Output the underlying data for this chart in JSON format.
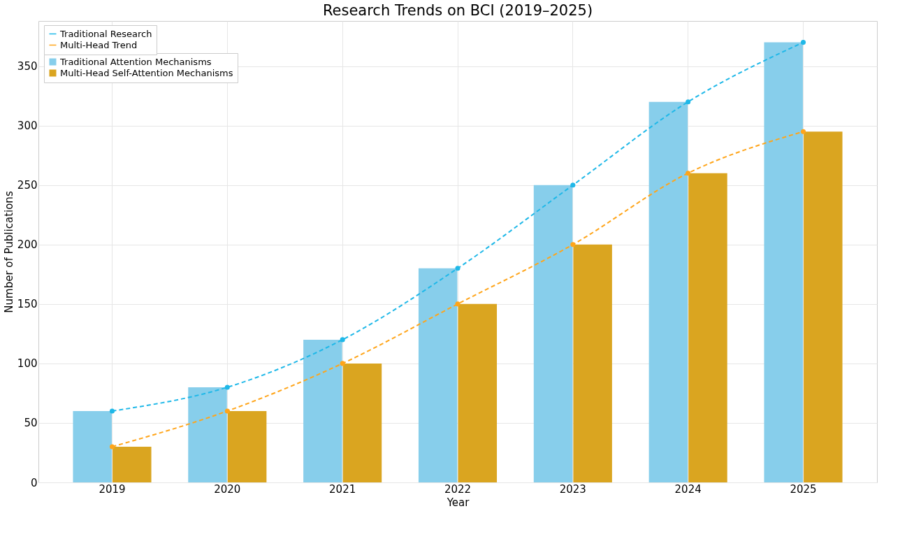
{
  "chart_data": {
    "type": "bar",
    "title": "Research Trends on BCI (2019–2025)",
    "xlabel": "Year",
    "ylabel": "Number of Publications",
    "categories": [
      "2019",
      "2020",
      "2021",
      "2022",
      "2023",
      "2024",
      "2025"
    ],
    "series": [
      {
        "name": "Traditional Attention Mechanisms",
        "color": "#87ceeb",
        "values": [
          60,
          80,
          120,
          180,
          250,
          320,
          370
        ]
      },
      {
        "name": "Multi-Head Self-Attention Mechanisms",
        "color": "#daa520",
        "values": [
          30,
          60,
          100,
          150,
          200,
          260,
          295
        ]
      },
      {
        "name": "Traditional Research",
        "type": "line",
        "color": "#1fb8e8",
        "values": [
          60,
          80,
          120,
          180,
          250,
          320,
          370
        ]
      },
      {
        "name": "Multi-Head Trend",
        "type": "line",
        "color": "#ffa51a",
        "values": [
          30,
          60,
          100,
          150,
          200,
          260,
          295
        ]
      }
    ],
    "ylim": [
      0,
      388
    ],
    "yticks": [
      0,
      50,
      100,
      150,
      200,
      250,
      300,
      350
    ],
    "grid": true,
    "legend": "top left",
    "marker": "circle",
    "line_style": "dashed"
  }
}
